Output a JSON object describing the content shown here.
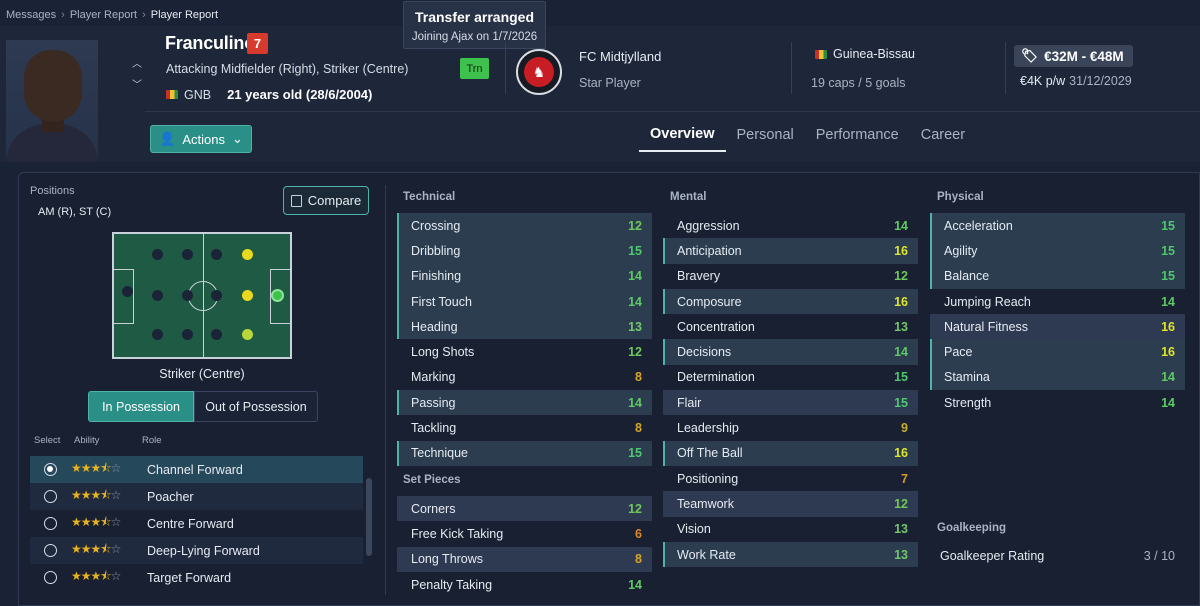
{
  "breadcrumb": [
    "Messages",
    "Player Report",
    "Player Report"
  ],
  "tooltip": {
    "title": "Transfer arranged",
    "subtitle": "Joining Ajax on 1/7/2026"
  },
  "player": {
    "name": "Franculino",
    "squad_number": "7",
    "positions": "Attacking Midfielder (Right), Striker (Centre)",
    "nation_code": "GNB",
    "age": "21 years old (28/6/2004)",
    "status_badge": "Trn"
  },
  "club": {
    "name": "FC Midtjylland",
    "role": "Star Player"
  },
  "international": {
    "nation": "Guinea-Bissau",
    "caps": "19 caps / 5 goals"
  },
  "value": {
    "range": "€32M - €48M",
    "wage": "€4K p/w",
    "contract_end": "31/12/2029"
  },
  "actions_label": "Actions",
  "tabs": [
    "Overview",
    "Personal",
    "Performance",
    "Career"
  ],
  "positions_panel": {
    "label": "Positions",
    "codes": "AM (R), ST (C)",
    "compare_label": "Compare",
    "selected_role": "Striker (Centre)",
    "in_possession": "In Possession",
    "out_possession": "Out of Possession",
    "col_select": "Select",
    "col_ability": "Ability",
    "col_role": "Role",
    "roles": [
      {
        "name": "Channel Forward",
        "stars": 3.5,
        "selected": true
      },
      {
        "name": "Poacher",
        "stars": 3.5,
        "selected": false
      },
      {
        "name": "Centre Forward",
        "stars": 3.5,
        "selected": false
      },
      {
        "name": "Deep-Lying Forward",
        "stars": 3.5,
        "selected": false
      },
      {
        "name": "Target Forward",
        "stars": 3.5,
        "selected": false
      }
    ]
  },
  "technical": {
    "title": "Technical",
    "items": [
      {
        "name": "Crossing",
        "value": "12"
      },
      {
        "name": "Dribbling",
        "value": "15"
      },
      {
        "name": "Finishing",
        "value": "14"
      },
      {
        "name": "First Touch",
        "value": "14"
      },
      {
        "name": "Heading",
        "value": "13"
      },
      {
        "name": "Long Shots",
        "value": "12"
      },
      {
        "name": "Marking",
        "value": "8"
      },
      {
        "name": "Passing",
        "value": "14"
      },
      {
        "name": "Tackling",
        "value": "8"
      },
      {
        "name": "Technique",
        "value": "15"
      }
    ]
  },
  "set_pieces": {
    "title": "Set Pieces",
    "items": [
      {
        "name": "Corners",
        "value": "12"
      },
      {
        "name": "Free Kick Taking",
        "value": "6"
      },
      {
        "name": "Long Throws",
        "value": "8"
      },
      {
        "name": "Penalty Taking",
        "value": "14"
      }
    ]
  },
  "mental": {
    "title": "Mental",
    "items": [
      {
        "name": "Aggression",
        "value": "14"
      },
      {
        "name": "Anticipation",
        "value": "16"
      },
      {
        "name": "Bravery",
        "value": "12"
      },
      {
        "name": "Composure",
        "value": "16"
      },
      {
        "name": "Concentration",
        "value": "13"
      },
      {
        "name": "Decisions",
        "value": "14"
      },
      {
        "name": "Determination",
        "value": "15"
      },
      {
        "name": "Flair",
        "value": "15"
      },
      {
        "name": "Leadership",
        "value": "9"
      },
      {
        "name": "Off The Ball",
        "value": "16"
      },
      {
        "name": "Positioning",
        "value": "7"
      },
      {
        "name": "Teamwork",
        "value": "12"
      },
      {
        "name": "Vision",
        "value": "13"
      },
      {
        "name": "Work Rate",
        "value": "13"
      }
    ]
  },
  "physical": {
    "title": "Physical",
    "items": [
      {
        "name": "Acceleration",
        "value": "15"
      },
      {
        "name": "Agility",
        "value": "15"
      },
      {
        "name": "Balance",
        "value": "15"
      },
      {
        "name": "Jumping Reach",
        "value": "14"
      },
      {
        "name": "Natural Fitness",
        "value": "16"
      },
      {
        "name": "Pace",
        "value": "16"
      },
      {
        "name": "Stamina",
        "value": "14"
      },
      {
        "name": "Strength",
        "value": "14"
      }
    ]
  },
  "goalkeeping": {
    "title": "Goalkeeping",
    "label": "Goalkeeper Rating",
    "value": "3 / 10"
  }
}
